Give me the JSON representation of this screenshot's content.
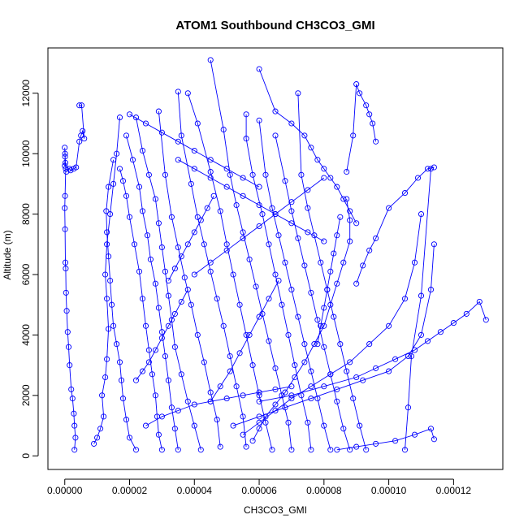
{
  "chart_data": {
    "type": "line",
    "title": "ATOM1 Southbound CH3CO3_GMI",
    "xlabel": "CH3CO3_GMI",
    "ylabel": "Altitude (m)",
    "xlim": [
      -5.2e-06,
      0.0001352
    ],
    "ylim": [
      -450,
      13500
    ],
    "x_ticks": [
      0.0,
      2e-05,
      4e-05,
      6e-05,
      8e-05,
      0.0001,
      0.00012
    ],
    "x_tick_labels": [
      "0.00000",
      "0.00002",
      "0.00004",
      "0.00006",
      "0.00008",
      "0.00010",
      "0.00012"
    ],
    "y_ticks": [
      0,
      2000,
      4000,
      6000,
      8000,
      10000,
      12000
    ],
    "y_tick_labels": [
      "0",
      "2000",
      "4000",
      "6000",
      "8000",
      "10000",
      "12000"
    ],
    "grid": false,
    "marker": "open-circle",
    "series": [
      {
        "color": "#0000ff",
        "profiles": [
          {
            "x": [
              3e-06,
              3.3e-06,
              3e-06,
              2.8e-06,
              2.4e-06,
              2e-06,
              1.5e-06,
              1.2e-06,
              9e-07,
              6e-07,
              4e-07,
              3e-07,
              2e-07,
              1e-07,
              0.0,
              1e-07,
              3e-07,
              2e-07,
              1e-07,
              0.0,
              1e-07,
              0.0
            ],
            "y": [
              200,
              600,
              1000,
              1400,
              1900,
              2200,
              3000,
              3600,
              4100,
              4800,
              5400,
              6200,
              6400,
              7500,
              8200,
              8600,
              9500,
              9700,
              10000,
              10200,
              9900,
              9600
            ]
          },
          {
            "x": [
              5e-07,
              1.5e-06,
              1.8e-06,
              2.8e-06,
              3.5e-06,
              4.5e-06,
              5e-06,
              5.5e-06,
              6e-06,
              5.2e-06,
              4.5e-06
            ],
            "y": [
              9400,
              9500,
              9450,
              9500,
              9550,
              10400,
              10600,
              10750,
              10500,
              11600,
              11600
            ]
          },
          {
            "x": [
              9e-06,
              1e-05,
              1.1e-05,
              1.2e-05,
              1.15e-05,
              1.25e-05,
              1.3e-05,
              1.35e-05,
              1.3e-05,
              1.25e-05,
              1.3e-05,
              1.4e-05,
              1.5e-05,
              1.6e-05,
              1.7e-05
            ],
            "y": [
              400,
              600,
              900,
              1300,
              2000,
              2600,
              3200,
              4200,
              5200,
              6000,
              7000,
              8000,
              9000,
              10000,
              11200
            ]
          },
          {
            "x": [
              2.2e-05,
              2e-05,
              1.9e-05,
              1.8e-05,
              1.75e-05,
              1.7e-05,
              1.6e-05,
              1.5e-05,
              1.45e-05,
              1.4e-05,
              1.35e-05,
              1.3e-05,
              1.28e-05,
              1.35e-05,
              1.5e-05
            ],
            "y": [
              200,
              600,
              1200,
              1900,
              2500,
              3100,
              3700,
              4300,
              5000,
              5800,
              6600,
              7400,
              8100,
              8900,
              9800
            ]
          },
          {
            "x": [
              3e-05,
              2.9e-05,
              2.85e-05,
              2.8e-05,
              2.7e-05,
              2.6e-05,
              2.5e-05,
              2.4e-05,
              2.3e-05,
              2.15e-05,
              2e-05,
              1.9e-05,
              1.8e-05,
              1.7e-05
            ],
            "y": [
              200,
              700,
              1300,
              2000,
              2700,
              3500,
              4300,
              5200,
              6100,
              7000,
              7900,
              8600,
              9100,
              9500
            ]
          },
          {
            "x": [
              3.5e-05,
              3.4e-05,
              3.3e-05,
              3.2e-05,
              3.1e-05,
              3e-05,
              2.9e-05,
              2.8e-05,
              2.65e-05,
              2.55e-05,
              2.4e-05,
              2.3e-05,
              2.1e-05,
              1.9e-05
            ],
            "y": [
              200,
              900,
              1600,
              2500,
              3300,
              4100,
              4900,
              5700,
              6500,
              7300,
              8100,
              8900,
              9800,
              10600
            ]
          },
          {
            "x": [
              4.2e-05,
              4e-05,
              3.8e-05,
              3.6e-05,
              3.4e-05,
              3.3e-05,
              3.2e-05,
              3.1e-05,
              3e-05,
              2.9e-05,
              2.8e-05,
              2.6e-05,
              2.4e-05,
              2.2e-05
            ],
            "y": [
              200,
              1000,
              1800,
              2700,
              3600,
              4500,
              5300,
              6100,
              6900,
              7700,
              8500,
              9300,
              10100,
              11200
            ]
          },
          {
            "x": [
              4.8e-05,
              4.7e-05,
              4.5e-05,
              4.3e-05,
              4.1e-05,
              3.9e-05,
              3.7e-05,
              3.5e-05,
              3.3e-05,
              3.1e-05,
              2.9e-05
            ],
            "y": [
              300,
              1200,
              2100,
              3100,
              4000,
              5000,
              5900,
              6900,
              7900,
              9300,
              11400
            ]
          },
          {
            "x": [
              5.6e-05,
              5.5e-05,
              5.3e-05,
              5.1e-05,
              4.9e-05,
              4.7e-05,
              4.5e-05,
              4.3e-05,
              4.1e-05,
              3.9e-05,
              3.6e-05,
              3.5e-05
            ],
            "y": [
              300,
              1300,
              2300,
              3300,
              4300,
              5200,
              6100,
              7000,
              7900,
              9000,
              10600,
              12050
            ]
          },
          {
            "x": [
              6.4e-05,
              6.2e-05,
              6e-05,
              5.8e-05,
              5.6e-05,
              5.4e-05,
              5.2e-05,
              5e-05,
              4.8e-05,
              4.5e-05,
              4.1e-05,
              3.8e-05
            ],
            "y": [
              200,
              1100,
              2000,
              3000,
              4000,
              5000,
              6000,
              7000,
              8100,
              9400,
              11000,
              12000
            ]
          },
          {
            "x": [
              7e-05,
              6.9e-05,
              6.7e-05,
              6.5e-05,
              6.3e-05,
              6.1e-05,
              5.9e-05,
              5.7e-05,
              5.5e-05,
              5.3e-05,
              5.1e-05,
              4.9e-05,
              4.5e-05
            ],
            "y": [
              200,
              1100,
              2000,
              2900,
              3800,
              4700,
              5600,
              6500,
              7400,
              8300,
              9300,
              10800,
              13100
            ]
          },
          {
            "x": [
              7.6e-05,
              7.5e-05,
              7.3e-05,
              7.1e-05,
              6.9e-05,
              6.7e-05,
              6.5e-05,
              6.3e-05,
              6.1e-05,
              5.8e-05,
              5.6e-05,
              5.6e-05
            ],
            "y": [
              200,
              1100,
              2000,
              3000,
              4000,
              5000,
              6000,
              7000,
              8000,
              9300,
              10500,
              11300
            ]
          },
          {
            "x": [
              8.2e-05,
              8e-05,
              7.8e-05,
              7.6e-05,
              7.4e-05,
              7.2e-05,
              7e-05,
              6.8e-05,
              6.6e-05,
              6.4e-05,
              6.2e-05,
              6e-05
            ],
            "y": [
              200,
              1000,
              1900,
              2800,
              3700,
              4600,
              5500,
              6400,
              7300,
              8200,
              9300,
              11100
            ]
          },
          {
            "x": [
              8.8e-05,
              8.6e-05,
              8.4e-05,
              8.2e-05,
              8e-05,
              7.8e-05,
              7.6e-05,
              7.4e-05,
              7.2e-05,
              7e-05,
              6.8e-05,
              6.5e-05
            ],
            "y": [
              200,
              900,
              1800,
              2700,
              3600,
              4500,
              5400,
              6300,
              7200,
              8100,
              9100,
              10600
            ]
          },
          {
            "x": [
              9.3e-05,
              9.1e-05,
              8.9e-05,
              8.7e-05,
              8.5e-05,
              8.3e-05,
              8.1e-05,
              7.9e-05,
              7.7e-05,
              7.5e-05,
              7.3e-05,
              7.2e-05
            ],
            "y": [
              200,
              1000,
              1900,
              2800,
              3700,
              4600,
              5500,
              6400,
              7300,
              8200,
              9300,
              12000
            ]
          },
          {
            "x": [
              5.8e-05,
              6e-05,
              6.2e-05,
              6.5e-05,
              6.8e-05,
              7.1e-05,
              7.4e-05,
              7.7e-05,
              8e-05,
              8.2e-05,
              8.4e-05,
              8.6e-05,
              8.8e-05,
              8.8e-05,
              8.7e-05
            ],
            "y": [
              500,
              900,
              1300,
              1700,
              2100,
              2600,
              3100,
              3700,
              4300,
              5000,
              5700,
              6400,
              7100,
              7800,
              8500
            ]
          },
          {
            "x": [
              5.5e-05,
              6e-05,
              6.5e-05,
              7e-05,
              7.6e-05,
              8.2e-05,
              8.8e-05,
              9.4e-05,
              0.0001,
              0.000105,
              0.000108,
              0.00011
            ],
            "y": [
              700,
              1100,
              1500,
              1900,
              2300,
              2700,
              3100,
              3700,
              4300,
              5200,
              6400,
              8000
            ]
          },
          {
            "x": [
              5.2e-05,
              6e-05,
              6.8e-05,
              7.6e-05,
              8.4e-05,
              9.2e-05,
              0.0001,
              0.000106,
              0.00011,
              0.000113,
              0.000114
            ],
            "y": [
              1000,
              1300,
              1600,
              1900,
              2200,
              2500,
              2800,
              3300,
              4000,
              5500,
              7000
            ]
          },
          {
            "x": [
              6e-05,
              7e-05,
              8e-05,
              9e-05,
              9.6e-05,
              0.000102,
              0.000108,
              0.000112,
              0.000116,
              0.00012,
              0.000124,
              0.000128,
              0.00013
            ],
            "y": [
              1800,
              2000,
              2300,
              2600,
              2900,
              3200,
              3500,
              3800,
              4100,
              4400,
              4700,
              5100,
              4500
            ]
          },
          {
            "x": [
              8.4e-05,
              9e-05,
              9.6e-05,
              0.000102,
              0.000108,
              0.000113,
              0.000114
            ],
            "y": [
              200,
              300,
              400,
              500,
              700,
              900,
              550
            ]
          },
          {
            "x": [
              0.000105,
              0.000106,
              0.000107,
              0.00011,
              0.000113
            ],
            "y": [
              200,
              1600,
              3300,
              5300,
              9500
            ]
          },
          {
            "x": [
              9e-05,
              9.2e-05,
              9.4e-05,
              9.6e-05,
              0.0001,
              0.000105,
              0.000109,
              0.000112,
              0.000114
            ],
            "y": [
              5700,
              6300,
              6800,
              7200,
              8200,
              8700,
              9200,
              9500,
              9550
            ]
          },
          {
            "x": [
              9e-05,
              8.8e-05,
              8.6e-05,
              8.4e-05,
              8.2e-05,
              8e-05,
              7.8e-05,
              7.6e-05,
              7.4e-05,
              7e-05,
              6.5e-05,
              6e-05
            ],
            "y": [
              7700,
              8100,
              8500,
              8900,
              9200,
              9500,
              9800,
              10200,
              10600,
              11000,
              11400,
              12800
            ]
          },
          {
            "x": [
              9.6e-05,
              9.5e-05,
              9.4e-05,
              9.3e-05,
              9.1e-05,
              9e-05,
              8.9e-05,
              8.7e-05
            ],
            "y": [
              10400,
              11000,
              11300,
              11600,
              12000,
              12300,
              10600,
              9400
            ]
          },
          {
            "x": [
              3.2e-05,
              3.4e-05,
              3.6e-05,
              3.8e-05,
              4e-05,
              4.2e-05,
              4.4e-05,
              4.6e-05
            ],
            "y": [
              5800,
              6200,
              6600,
              7000,
              7400,
              7800,
              8200,
              8600
            ]
          },
          {
            "x": [
              2.2e-05,
              2.4e-05,
              2.6e-05,
              2.8e-05,
              3e-05,
              3.2e-05,
              3.4e-05,
              3.6e-05,
              3.8e-05
            ],
            "y": [
              2500,
              2800,
              3100,
              3500,
              3900,
              4300,
              4700,
              5100,
              5500
            ]
          },
          {
            "x": [
              4.5e-05,
              4.8e-05,
              5.1e-05,
              5.4e-05,
              5.7e-05,
              6e-05,
              6.3e-05,
              6.6e-05
            ],
            "y": [
              1800,
              2300,
              2800,
              3400,
              4000,
              4600,
              5200,
              5800
            ]
          },
          {
            "x": [
              4e-05,
              4.5e-05,
              5e-05,
              5.5e-05,
              6e-05,
              6.5e-05,
              7e-05,
              7.5e-05,
              8e-05
            ],
            "y": [
              6000,
              6400,
              6800,
              7200,
              7600,
              8000,
              8400,
              8800,
              9200
            ]
          },
          {
            "x": [
              3.5e-05,
              4e-05,
              4.5e-05,
              5e-05,
              5.5e-05,
              6e-05,
              6.5e-05,
              7e-05,
              7.5e-05,
              8e-05
            ],
            "y": [
              9800,
              9500,
              9200,
              8900,
              8600,
              8300,
              8000,
              7700,
              7400,
              7100
            ]
          },
          {
            "x": [
              2e-05,
              2.5e-05,
              3e-05,
              3.5e-05,
              4e-05,
              4.5e-05,
              5e-05,
              5.5e-05,
              6e-05
            ],
            "y": [
              11300,
              11000,
              10700,
              10400,
              10100,
              9800,
              9500,
              9200,
              8900
            ]
          },
          {
            "x": [
              2.5e-05,
              3e-05,
              3.5e-05,
              4e-05,
              4.5e-05,
              5e-05,
              5.5e-05,
              6e-05,
              6.5e-05,
              7e-05
            ],
            "y": [
              1000,
              1300,
              1500,
              1700,
              1800,
              1900,
              2000,
              2100,
              2200,
              2300
            ]
          },
          {
            "x": [
              7.8e-05,
              7.9e-05,
              8e-05,
              8.1e-05,
              8.2e-05,
              8.3e-05,
              8.4e-05,
              8.5e-05
            ],
            "y": [
              3700,
              4300,
              4900,
              5500,
              6100,
              6700,
              7300,
              7900
            ]
          }
        ]
      }
    ]
  }
}
